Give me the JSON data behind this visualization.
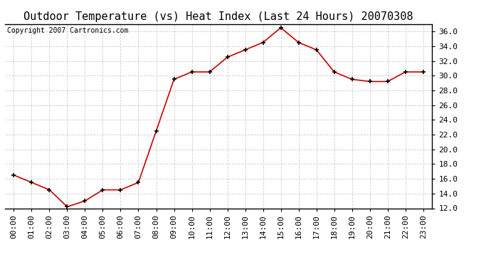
{
  "title": "Outdoor Temperature (vs) Heat Index (Last 24 Hours) 20070308",
  "copyright_text": "Copyright 2007 Cartronics.com",
  "x_labels": [
    "00:00",
    "01:00",
    "02:00",
    "03:00",
    "04:00",
    "05:00",
    "06:00",
    "07:00",
    "08:00",
    "09:00",
    "10:00",
    "11:00",
    "12:00",
    "13:00",
    "14:00",
    "15:00",
    "16:00",
    "17:00",
    "18:00",
    "19:00",
    "20:00",
    "21:00",
    "22:00",
    "23:00"
  ],
  "y_values": [
    16.5,
    15.5,
    14.5,
    12.2,
    13.0,
    14.5,
    14.5,
    15.5,
    22.5,
    29.5,
    30.5,
    30.5,
    32.5,
    33.5,
    34.5,
    36.5,
    34.5,
    33.5,
    30.5,
    29.5,
    29.2,
    29.2,
    30.5,
    30.5
  ],
  "ylim_min": 12.0,
  "ylim_max": 37.0,
  "y_ticks": [
    12.0,
    14.0,
    16.0,
    18.0,
    20.0,
    22.0,
    24.0,
    26.0,
    28.0,
    30.0,
    32.0,
    34.0,
    36.0
  ],
  "line_color": "#cc0000",
  "marker": "+",
  "marker_color": "#000000",
  "bg_color": "#ffffff",
  "plot_bg_color": "#ffffff",
  "grid_color": "#cccccc",
  "title_fontsize": 11,
  "copyright_fontsize": 7,
  "tick_fontsize": 8
}
